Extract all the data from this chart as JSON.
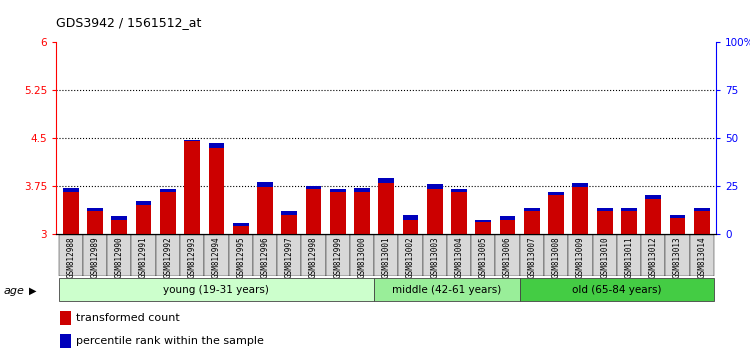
{
  "title": "GDS3942 / 1561512_at",
  "samples": [
    "GSM812988",
    "GSM812989",
    "GSM812990",
    "GSM812991",
    "GSM812992",
    "GSM812993",
    "GSM812994",
    "GSM812995",
    "GSM812996",
    "GSM812997",
    "GSM812998",
    "GSM812999",
    "GSM813000",
    "GSM813001",
    "GSM813002",
    "GSM813003",
    "GSM813004",
    "GSM813005",
    "GSM813006",
    "GSM813007",
    "GSM813008",
    "GSM813009",
    "GSM813010",
    "GSM813011",
    "GSM813012",
    "GSM813013",
    "GSM813014"
  ],
  "red_values": [
    3.65,
    3.35,
    3.22,
    3.45,
    3.65,
    4.45,
    4.35,
    3.12,
    3.73,
    3.3,
    3.7,
    3.65,
    3.65,
    3.8,
    3.22,
    3.7,
    3.65,
    3.18,
    3.22,
    3.35,
    3.6,
    3.73,
    3.35,
    3.35,
    3.55,
    3.25,
    3.35
  ],
  "blue_values": [
    0.06,
    0.06,
    0.05,
    0.06,
    0.05,
    0.02,
    0.07,
    0.05,
    0.08,
    0.05,
    0.04,
    0.05,
    0.07,
    0.08,
    0.07,
    0.08,
    0.05,
    0.04,
    0.05,
    0.05,
    0.05,
    0.07,
    0.05,
    0.06,
    0.05,
    0.05,
    0.05
  ],
  "groups": [
    {
      "label": "young (19-31 years)",
      "start": 0,
      "end": 13,
      "color": "#ccffcc"
    },
    {
      "label": "middle (42-61 years)",
      "start": 13,
      "end": 19,
      "color": "#99ee99"
    },
    {
      "label": "old (65-84 years)",
      "start": 19,
      "end": 27,
      "color": "#44cc44"
    }
  ],
  "ylim_left": [
    3.0,
    6.0
  ],
  "ylim_right": [
    0,
    100
  ],
  "yticks_left": [
    3.0,
    3.75,
    4.5,
    5.25,
    6.0
  ],
  "ytick_labels_left": [
    "3",
    "3.75",
    "4.5",
    "5.25",
    "6"
  ],
  "yticks_right": [
    0,
    25,
    50,
    75,
    100
  ],
  "ytick_labels_right": [
    "0",
    "25",
    "50",
    "75",
    "100%"
  ],
  "hlines": [
    3.75,
    4.5,
    5.25
  ],
  "bar_color_red": "#cc0000",
  "bar_color_blue": "#0000bb",
  "legend_red": "transformed count",
  "legend_blue": "percentile rank within the sample",
  "age_label": "age"
}
